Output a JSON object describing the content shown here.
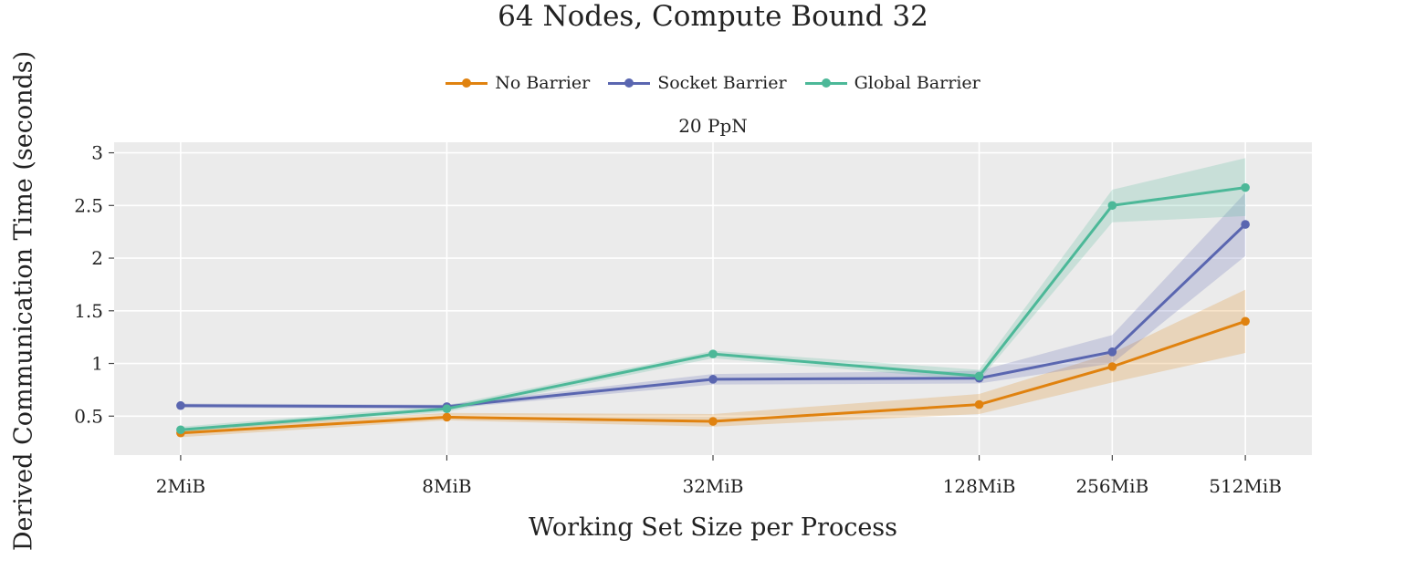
{
  "chart_data": {
    "type": "line",
    "title": "64 Nodes, Compute Bound 32",
    "subtitle": "20 PpN",
    "xlabel": "Working Set Size per Process",
    "ylabel": "Derived Communication Time (seconds)",
    "categories": [
      "2MiB",
      "8MiB",
      "32MiB",
      "128MiB",
      "256MiB",
      "512MiB"
    ],
    "x_log2_mib": [
      1,
      3,
      5,
      7,
      8,
      9
    ],
    "ylim": [
      0.13,
      3.1
    ],
    "yticks": [
      0.5,
      1,
      1.5,
      2,
      2.5,
      3
    ],
    "ytick_labels": [
      "0.5",
      "1",
      "1.5",
      "2",
      "2.5",
      "3"
    ],
    "legend_position": "top-center",
    "grid": true,
    "series": [
      {
        "name": "No Barrier",
        "color": "#e0820f",
        "values": [
          0.34,
          0.49,
          0.45,
          0.61,
          0.97,
          1.4
        ],
        "lower": [
          0.3,
          0.46,
          0.4,
          0.52,
          0.82,
          1.1
        ],
        "upper": [
          0.38,
          0.53,
          0.52,
          0.71,
          1.1,
          1.7
        ]
      },
      {
        "name": "Socket Barrier",
        "color": "#5a66b0",
        "values": [
          0.6,
          0.59,
          0.85,
          0.86,
          1.11,
          2.32
        ],
        "lower": [
          0.58,
          0.57,
          0.8,
          0.81,
          1.0,
          2.02
        ],
        "upper": [
          0.62,
          0.61,
          0.9,
          0.93,
          1.27,
          2.62
        ]
      },
      {
        "name": "Global Barrier",
        "color": "#4cb898",
        "values": [
          0.37,
          0.57,
          1.09,
          0.88,
          2.5,
          2.67
        ],
        "lower": [
          0.35,
          0.54,
          1.05,
          0.84,
          2.34,
          2.4
        ],
        "upper": [
          0.4,
          0.6,
          1.12,
          0.94,
          2.65,
          2.95
        ]
      }
    ]
  }
}
